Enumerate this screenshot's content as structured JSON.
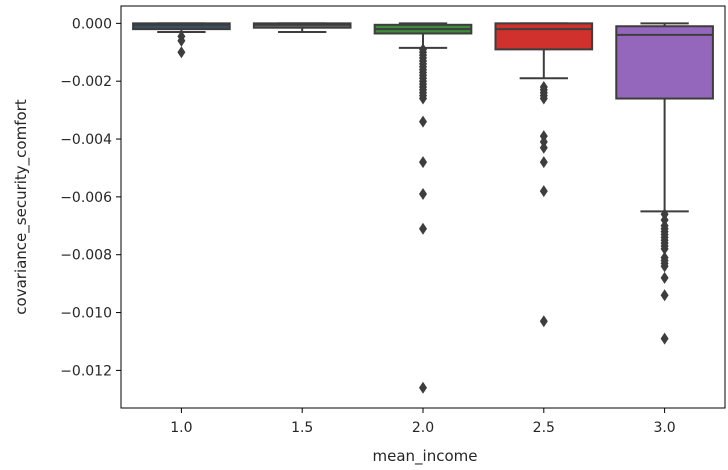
{
  "chart_data": {
    "type": "boxplot",
    "xlabel": "mean_income",
    "ylabel": "covariance_security_comfort",
    "categories": [
      "1.0",
      "1.5",
      "2.0",
      "2.5",
      "3.0"
    ],
    "y_ticks": [
      0.0,
      -0.002,
      -0.004,
      -0.006,
      -0.008,
      -0.01,
      -0.012
    ],
    "y_tick_labels": [
      "0.000",
      "−0.002",
      "−0.004",
      "−0.006",
      "−0.008",
      "−0.010",
      "−0.012"
    ],
    "ylim": [
      -0.0133,
      0.0006
    ],
    "grid": false,
    "legend": "none",
    "boxes": [
      {
        "category": "1.0",
        "color": "#3a4f63",
        "whisker_high": 0.0,
        "q3": 0.0,
        "median": -5e-05,
        "q1": -0.0002,
        "whisker_low": -0.0003,
        "outliers": [
          -0.00045,
          -0.0006,
          -0.001
        ]
      },
      {
        "category": "1.5",
        "color": "#6b6b6b",
        "whisker_high": 0.0,
        "q3": 0.0,
        "median": -5e-05,
        "q1": -0.00015,
        "whisker_low": -0.0003,
        "outliers": []
      },
      {
        "category": "2.0",
        "color": "#3c8c3c",
        "whisker_high": 0.0,
        "q3": -5e-05,
        "median": -0.0002,
        "q1": -0.00035,
        "whisker_low": -0.00085,
        "outliers": [
          -0.0009,
          -0.001,
          -0.0011,
          -0.0012,
          -0.0013,
          -0.0014,
          -0.0015,
          -0.0016,
          -0.0017,
          -0.0018,
          -0.0019,
          -0.002,
          -0.0021,
          -0.0022,
          -0.0023,
          -0.0024,
          -0.0025,
          -0.0026,
          -0.0034,
          -0.0048,
          -0.0059,
          -0.0071,
          -0.0126
        ]
      },
      {
        "category": "2.5",
        "color": "#d0312d",
        "whisker_high": 0.0,
        "q3": 0.0,
        "median": -0.0002,
        "q1": -0.0009,
        "whisker_low": -0.0019,
        "outliers": [
          -0.0022,
          -0.0023,
          -0.0024,
          -0.0025,
          -0.0026,
          -0.0039,
          -0.0041,
          -0.0043,
          -0.0048,
          -0.0058,
          -0.0103
        ]
      },
      {
        "category": "3.0",
        "color": "#9467bd",
        "whisker_high": 0.0,
        "q3": -0.0001,
        "median": -0.0004,
        "q1": -0.0026,
        "whisker_low": -0.0065,
        "outliers": [
          -0.0066,
          -0.0068,
          -0.007,
          -0.0071,
          -0.0072,
          -0.0073,
          -0.0074,
          -0.0075,
          -0.0076,
          -0.0077,
          -0.0078,
          -0.0081,
          -0.0082,
          -0.0083,
          -0.0084,
          -0.0088,
          -0.0094,
          -0.0109
        ]
      }
    ]
  }
}
